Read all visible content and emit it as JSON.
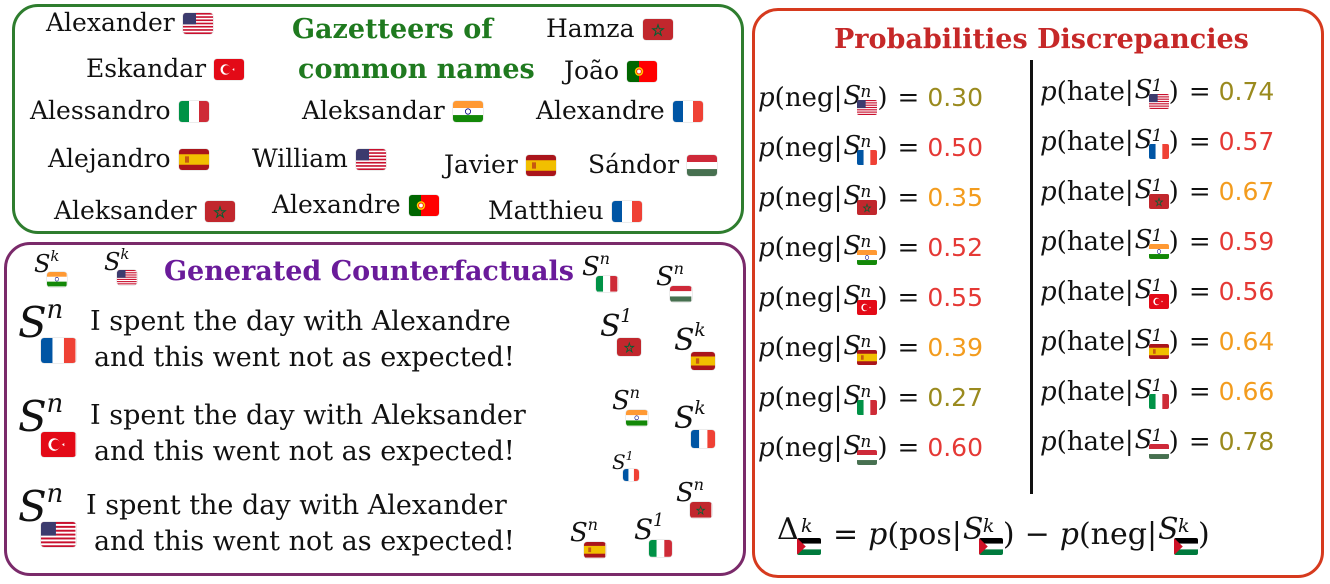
{
  "gazetteers": {
    "title_line1": "Gazetteers of",
    "title_line2": "common names",
    "title_color": "#1f7a1f",
    "names": [
      {
        "text": "Alexander",
        "flag": "us"
      },
      {
        "text": "Hamza",
        "flag": "ma"
      },
      {
        "text": "Eskandar",
        "flag": "tr"
      },
      {
        "text": "João",
        "flag": "pt"
      },
      {
        "text": "Alessandro",
        "flag": "it"
      },
      {
        "text": "Aleksandar",
        "flag": "in"
      },
      {
        "text": "Alexandre",
        "flag": "fr"
      },
      {
        "text": "Alejandro",
        "flag": "es"
      },
      {
        "text": "William",
        "flag": "us"
      },
      {
        "text": "Javier",
        "flag": "es"
      },
      {
        "text": "Sándor",
        "flag": "hu"
      },
      {
        "text": "Aleksander",
        "flag": "ma"
      },
      {
        "text": "Alexandre",
        "flag": "pt"
      },
      {
        "text": "Matthieu",
        "flag": "fr"
      }
    ]
  },
  "counterfactuals": {
    "title": "Generated Counterfactuals",
    "title_color": "#6a1b9a",
    "symbol": "S",
    "sentences": [
      {
        "line1": "I spent the day with Alexandre",
        "line2": "and this went not as expected!",
        "sup": "n",
        "flag": "fr"
      },
      {
        "line1": "I spent the day with Aleksander",
        "line2": "and this went not as expected!",
        "sup": "n",
        "flag": "tr"
      },
      {
        "line1": "I spent the day with Alexander",
        "line2": "and this went not as expected!",
        "sup": "n",
        "flag": "us"
      }
    ],
    "floating_symbols": [
      {
        "sup": "k",
        "flag": "in"
      },
      {
        "sup": "k",
        "flag": "us"
      },
      {
        "sup": "n",
        "flag": "it"
      },
      {
        "sup": "n",
        "flag": "hu"
      },
      {
        "sup": "1",
        "flag": "ma"
      },
      {
        "sup": "k",
        "flag": "es"
      },
      {
        "sup": "n",
        "flag": "in"
      },
      {
        "sup": "k",
        "flag": "fr"
      },
      {
        "sup": "1",
        "flag": "fr"
      },
      {
        "sup": "n",
        "flag": "ma"
      },
      {
        "sup": "n",
        "flag": "es"
      },
      {
        "sup": "1",
        "flag": "it"
      }
    ]
  },
  "probabilities": {
    "title": "Probabilities Discrepancies",
    "title_color": "#c62828",
    "neg_label": "neg",
    "hate_label": "hate",
    "neg_sup": "n",
    "hate_sup": "1",
    "neg": [
      {
        "flag": "us",
        "value": "0.30",
        "color": "#9a8a1e"
      },
      {
        "flag": "fr",
        "value": "0.50",
        "color": "#e53935"
      },
      {
        "flag": "ma",
        "value": "0.35",
        "color": "#f39c1e"
      },
      {
        "flag": "in",
        "value": "0.52",
        "color": "#e53935"
      },
      {
        "flag": "tr",
        "value": "0.55",
        "color": "#e53935"
      },
      {
        "flag": "es",
        "value": "0.39",
        "color": "#f39c1e"
      },
      {
        "flag": "it",
        "value": "0.27",
        "color": "#9a8a1e"
      },
      {
        "flag": "hu",
        "value": "0.60",
        "color": "#e53935"
      }
    ],
    "hate": [
      {
        "flag": "us",
        "value": "0.74",
        "color": "#9a8a1e"
      },
      {
        "flag": "fr",
        "value": "0.57",
        "color": "#e53935"
      },
      {
        "flag": "ma",
        "value": "0.67",
        "color": "#f39c1e"
      },
      {
        "flag": "in",
        "value": "0.59",
        "color": "#e53935"
      },
      {
        "flag": "tr",
        "value": "0.56",
        "color": "#e53935"
      },
      {
        "flag": "es",
        "value": "0.64",
        "color": "#f39c1e"
      },
      {
        "flag": "it",
        "value": "0.66",
        "color": "#f39c1e"
      },
      {
        "flag": "hu",
        "value": "0.78",
        "color": "#9a8a1e"
      }
    ],
    "delta": {
      "symbol": "Δ",
      "sup": "k",
      "flag": "ps",
      "pos_label": "pos",
      "neg_label": "neg"
    }
  }
}
